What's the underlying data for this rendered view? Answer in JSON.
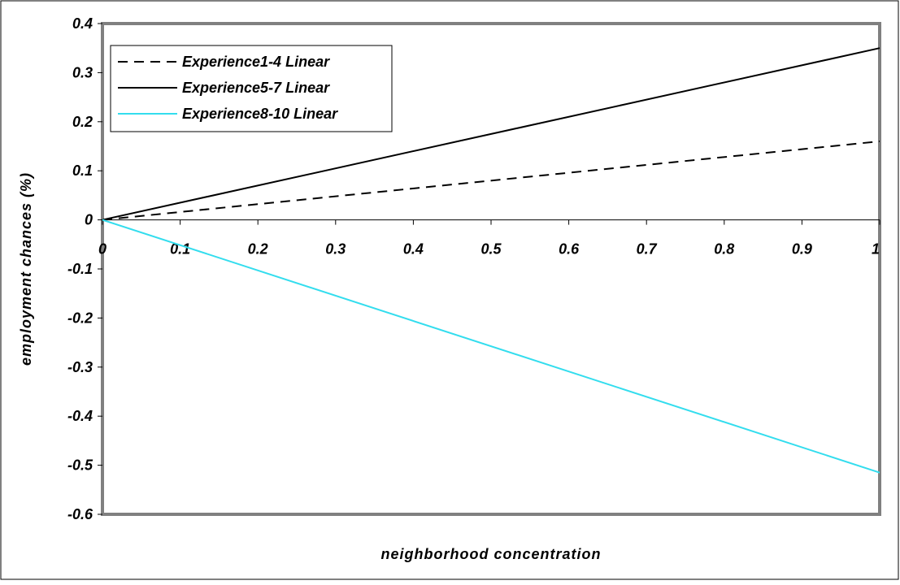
{
  "chart_data": {
    "type": "line",
    "title": "",
    "xlabel": "neighborhood concentration",
    "ylabel": "employment chances (%)",
    "xlim": [
      0,
      1
    ],
    "ylim": [
      -0.6,
      0.4
    ],
    "x_ticks": [
      0,
      0.1,
      0.2,
      0.3,
      0.4,
      0.5,
      0.6,
      0.7,
      0.8,
      0.9,
      1
    ],
    "x_tick_labels": [
      "0",
      "0.1",
      "0.2",
      "0.3",
      "0.4",
      "0.5",
      "0.6",
      "0.7",
      "0.8",
      "0.9",
      "1"
    ],
    "y_ticks": [
      0.4,
      0.3,
      0.2,
      0.1,
      0,
      -0.1,
      -0.2,
      -0.3,
      -0.4,
      -0.5,
      -0.6
    ],
    "y_tick_labels": [
      "0.4",
      "0.3",
      "0.2",
      "0.1",
      "0",
      "-0.1",
      "-0.2",
      "-0.3",
      "-0.4",
      "-0.5",
      "-0.6"
    ],
    "grid": false,
    "legend_position": "top-left",
    "series": [
      {
        "name": "Experience1-4 Linear",
        "x": [
          0,
          1
        ],
        "values": [
          0,
          0.16
        ],
        "color": "#000000",
        "dash": "dashed"
      },
      {
        "name": "Experience5-7 Linear",
        "x": [
          0,
          1
        ],
        "values": [
          0,
          0.35
        ],
        "color": "#000000",
        "dash": "solid"
      },
      {
        "name": "Experience8-10 Linear",
        "x": [
          0,
          1
        ],
        "values": [
          0,
          -0.515
        ],
        "color": "#33ddee",
        "dash": "solid"
      }
    ],
    "colors": {
      "plot_border": "#808080",
      "outer_border": "#000000",
      "background": "#ffffff"
    }
  }
}
